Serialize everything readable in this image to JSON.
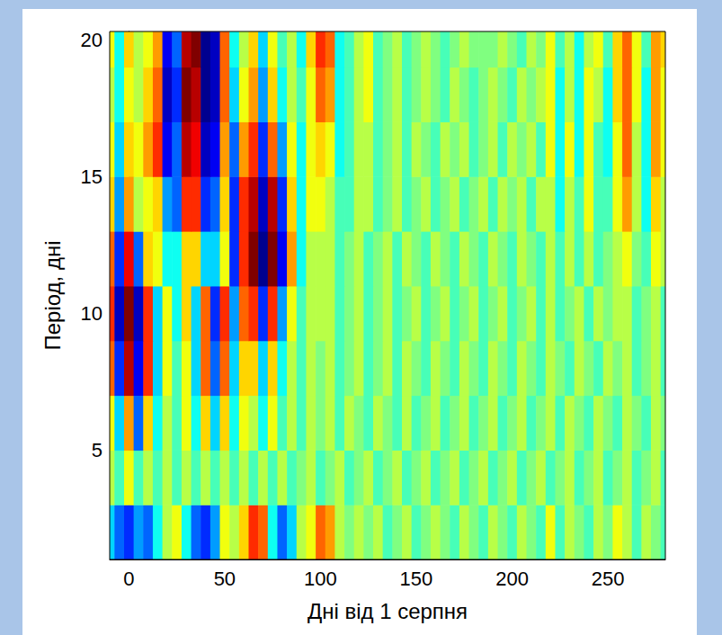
{
  "chart_data": {
    "type": "heatmap",
    "xlabel": "Дні від 1 серпня",
    "ylabel": "Період, дні",
    "x": [
      -10,
      -5,
      0,
      5,
      10,
      15,
      20,
      25,
      30,
      35,
      40,
      45,
      50,
      55,
      60,
      65,
      70,
      75,
      80,
      85,
      90,
      95,
      100,
      105,
      110,
      115,
      120,
      125,
      130,
      135,
      140,
      145,
      150,
      155,
      160,
      165,
      170,
      175,
      180,
      185,
      190,
      195,
      200,
      205,
      210,
      215,
      220,
      225,
      230,
      235,
      240,
      245,
      250,
      255,
      260,
      265,
      270,
      275,
      280
    ],
    "y": [
      2,
      4,
      6,
      8,
      10,
      12,
      14,
      16,
      18,
      20
    ],
    "z": [
      [
        -3,
        -5,
        -6,
        -4,
        -5,
        -2,
        1,
        2,
        -2,
        -5,
        -6,
        -4,
        2,
        1,
        3,
        6,
        5,
        -2,
        -5,
        -3,
        1,
        2,
        5,
        4,
        1,
        0,
        1,
        0,
        1,
        -1,
        0,
        1,
        -1,
        0,
        1,
        0,
        -1,
        1,
        0,
        -1,
        1,
        0,
        -1,
        1,
        0,
        -1,
        2,
        -1,
        1,
        0,
        -1,
        1,
        0,
        2,
        1,
        -1,
        1,
        0,
        -1
      ],
      [
        1,
        -1,
        2,
        -1,
        1,
        -1,
        1,
        -1,
        1,
        -1,
        1,
        -1,
        1,
        -1,
        1,
        -1,
        1,
        -1,
        1,
        -1,
        0,
        1,
        -1,
        0,
        1,
        -1,
        0,
        1,
        -1,
        0,
        1,
        -1,
        0,
        1,
        -1,
        0,
        1,
        -1,
        0,
        1,
        -1,
        0,
        1,
        -1,
        0,
        1,
        -1,
        0,
        1,
        -1,
        0,
        1,
        -1,
        0,
        1,
        -1,
        0,
        1,
        -1
      ],
      [
        2,
        -3,
        4,
        -5,
        3,
        -2,
        1,
        -1,
        2,
        -2,
        3,
        -3,
        3,
        -2,
        2,
        1,
        -2,
        2,
        -1,
        1,
        -1,
        1,
        0,
        1,
        -1,
        1,
        0,
        -1,
        1,
        0,
        -1,
        1,
        -1,
        0,
        1,
        -1,
        0,
        1,
        -1,
        0,
        1,
        -1,
        0,
        1,
        -1,
        0,
        1,
        -1,
        1,
        0,
        -1,
        1,
        0,
        -1,
        1,
        0,
        -1,
        1,
        0
      ],
      [
        5,
        -6,
        8,
        -7,
        6,
        -3,
        2,
        -1,
        2,
        -3,
        5,
        -5,
        5,
        -3,
        3,
        3,
        -3,
        3,
        -2,
        1,
        -1,
        1,
        0,
        1,
        -1,
        0,
        1,
        -1,
        0,
        1,
        -1,
        1,
        0,
        -1,
        1,
        0,
        -1,
        1,
        0,
        -1,
        1,
        0,
        -1,
        1,
        0,
        -1,
        1,
        0,
        -1,
        1,
        0,
        -1,
        1,
        0,
        1,
        -1,
        0,
        1,
        -1
      ],
      [
        6,
        -8,
        9,
        -8,
        6,
        -3,
        2,
        -2,
        3,
        -3,
        5,
        -6,
        6,
        -4,
        5,
        6,
        -6,
        6,
        -4,
        2,
        -1,
        1,
        1,
        1,
        -1,
        0,
        1,
        -1,
        0,
        1,
        -1,
        0,
        1,
        -1,
        0,
        1,
        -1,
        0,
        1,
        -1,
        0,
        1,
        -1,
        0,
        1,
        -1,
        1,
        -1,
        0,
        1,
        -1,
        1,
        0,
        1,
        1,
        -1,
        0,
        1,
        -1
      ],
      [
        5,
        -6,
        7,
        -5,
        3,
        2,
        -2,
        -2,
        3,
        3,
        -3,
        -3,
        2,
        -6,
        6,
        9,
        -9,
        9,
        -7,
        4,
        -2,
        1,
        1,
        1,
        -1,
        0,
        1,
        -1,
        0,
        1,
        -1,
        1,
        0,
        -1,
        1,
        0,
        -1,
        1,
        0,
        -1,
        1,
        0,
        -1,
        1,
        0,
        -1,
        1,
        -1,
        1,
        -1,
        1,
        -1,
        0,
        1,
        2,
        0,
        -1,
        2,
        1
      ],
      [
        3,
        -4,
        4,
        1,
        2,
        3,
        -4,
        -5,
        6,
        6,
        -6,
        -5,
        3,
        -6,
        6,
        8,
        -8,
        8,
        -6,
        3,
        -2,
        2,
        2,
        1,
        -1,
        -1,
        1,
        1,
        -1,
        0,
        1,
        -1,
        0,
        1,
        -1,
        0,
        1,
        -1,
        0,
        1,
        -1,
        1,
        0,
        1,
        -1,
        1,
        1,
        -2,
        1,
        -1,
        2,
        -1,
        -1,
        2,
        4,
        1,
        -2,
        3,
        1
      ],
      [
        2,
        -3,
        3,
        2,
        4,
        6,
        -7,
        -5,
        8,
        7,
        -8,
        -7,
        4,
        -5,
        4,
        6,
        -6,
        5,
        -4,
        2,
        -2,
        2,
        3,
        2,
        -2,
        -1,
        1,
        1,
        -1,
        0,
        1,
        -1,
        1,
        0,
        -1,
        1,
        0,
        1,
        -1,
        0,
        1,
        -1,
        1,
        0,
        1,
        -1,
        2,
        -2,
        2,
        -2,
        2,
        -1,
        -2,
        2,
        5,
        1,
        -2,
        4,
        2
      ],
      [
        1,
        -2,
        2,
        1,
        3,
        5,
        -8,
        -6,
        9,
        8,
        -9,
        -8,
        5,
        -3,
        2,
        4,
        -4,
        3,
        -2,
        1,
        -1,
        2,
        5,
        4,
        -2,
        -1,
        1,
        2,
        -1,
        0,
        1,
        -1,
        0,
        1,
        0,
        -1,
        1,
        0,
        -1,
        0,
        1,
        0,
        -1,
        1,
        0,
        1,
        2,
        -2,
        1,
        -2,
        2,
        1,
        -2,
        3,
        5,
        2,
        -2,
        4,
        2
      ],
      [
        2,
        -2,
        3,
        1,
        2,
        4,
        -7,
        -5,
        8,
        9,
        -9,
        -8,
        5,
        -2,
        1,
        3,
        -3,
        2,
        -1,
        1,
        -2,
        3,
        6,
        5,
        -2,
        -1,
        1,
        2,
        -1,
        0,
        1,
        -1,
        0,
        1,
        0,
        -1,
        0,
        1,
        0,
        0,
        0,
        1,
        0,
        -1,
        1,
        0,
        2,
        -1,
        1,
        -2,
        1,
        2,
        -1,
        3,
        5,
        2,
        -1,
        4,
        3
      ]
    ],
    "zlim": [
      -9,
      9
    ],
    "xlim": [
      -10,
      280
    ],
    "ylim": [
      1,
      20.3
    ],
    "xticks": [
      0,
      50,
      100,
      150,
      200,
      250
    ],
    "yticks": [
      5,
      10,
      15,
      20
    ]
  }
}
